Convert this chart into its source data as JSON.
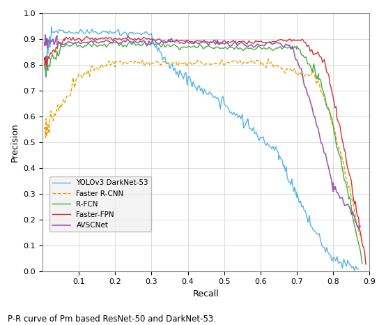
{
  "caption": "P-R curve of Pm based ResNet-50 and DarkNet-53.",
  "xlabel": "Recall",
  "ylabel": "Precision",
  "xlim": [
    0.0,
    0.9
  ],
  "ylim": [
    0.0,
    1.0
  ],
  "xticks": [
    0.1,
    0.2,
    0.3,
    0.4,
    0.5,
    0.6,
    0.7,
    0.8,
    0.9
  ],
  "yticks": [
    0.0,
    0.1,
    0.2,
    0.3,
    0.4,
    0.5,
    0.6,
    0.7,
    0.8,
    0.9,
    1.0
  ],
  "grid": true,
  "background_color": "#ffffff",
  "series": [
    {
      "label": "YOLOv3 DarkNet-53",
      "color": "#56b4e9",
      "linewidth": 1.0,
      "linestyle": "-"
    },
    {
      "label": "Faster R-CNN",
      "color": "#e69f00",
      "linewidth": 1.0,
      "linestyle": "--"
    },
    {
      "label": "R-FCN",
      "color": "#44aa44",
      "linewidth": 1.0,
      "linestyle": "-"
    },
    {
      "label": "Faster-FPN",
      "color": "#cc3333",
      "linewidth": 1.0,
      "linestyle": "-"
    },
    {
      "label": "AVSCNet",
      "color": "#9b59b6",
      "linewidth": 1.2,
      "linestyle": "-"
    }
  ],
  "fig_width": 5.54,
  "fig_height": 4.66,
  "dpi": 100
}
